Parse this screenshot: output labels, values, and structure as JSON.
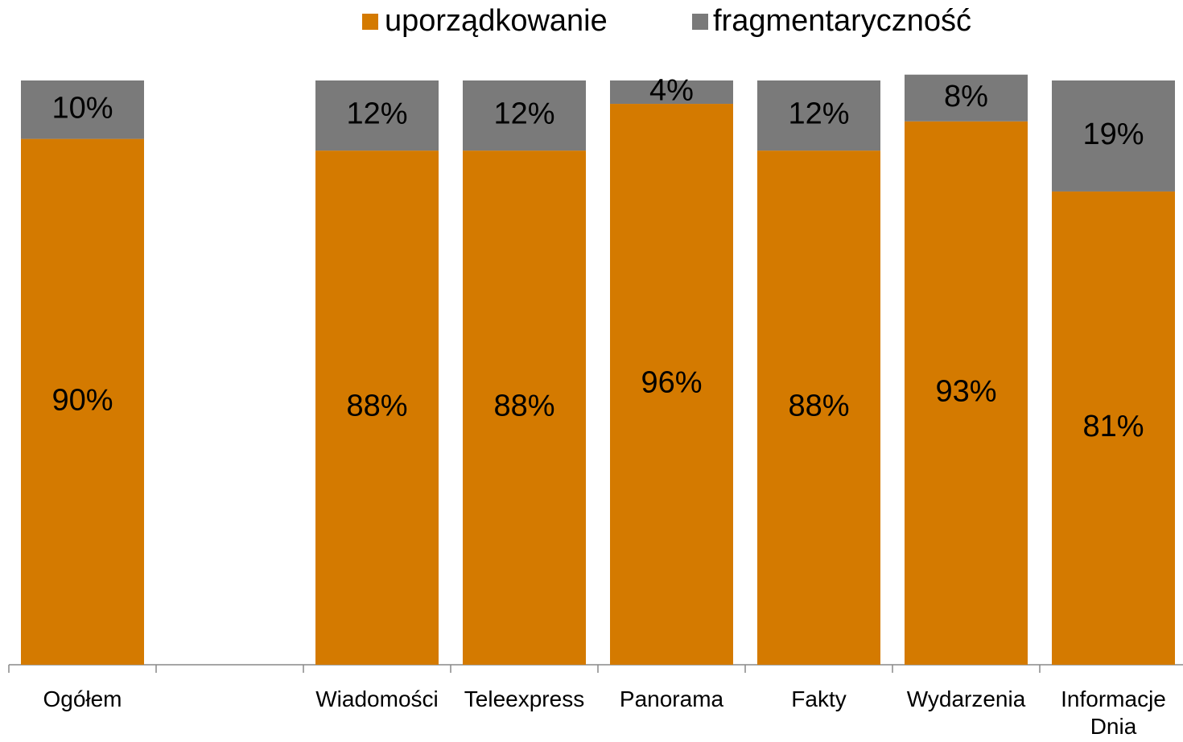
{
  "chart_data": {
    "type": "stacked_bar",
    "categories": [
      "Ogółem",
      null,
      "Wiadomości",
      "Teleexpress",
      "Panorama",
      "Fakty",
      "Wydarzenia",
      "Informacje Dnia"
    ],
    "series": [
      {
        "name": "uporządkowanie",
        "color": "#d47a00",
        "values": [
          90,
          null,
          88,
          88,
          96,
          88,
          93,
          81
        ],
        "value_labels": [
          "90%",
          null,
          "88%",
          "88%",
          "96%",
          "88%",
          "93%",
          "81%"
        ]
      },
      {
        "name": "fragmentaryczność",
        "color": "#7a7a7a",
        "values": [
          10,
          null,
          12,
          12,
          4,
          12,
          8,
          19
        ],
        "value_labels": [
          "10%",
          null,
          "12%",
          "12%",
          "4%",
          "12%",
          "8%",
          "19%"
        ]
      }
    ],
    "ylim": [
      0,
      100
    ],
    "legend": "top"
  }
}
